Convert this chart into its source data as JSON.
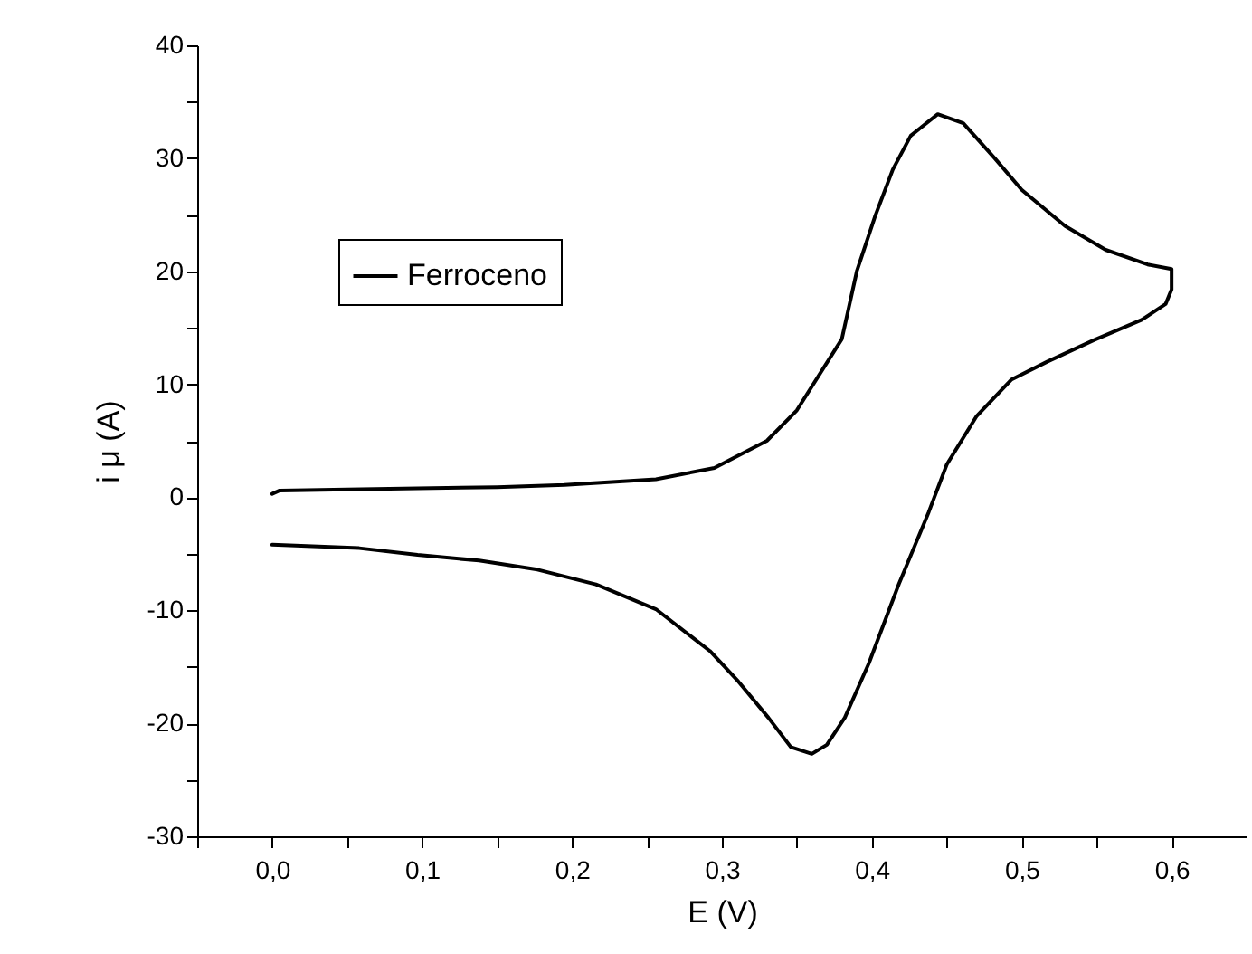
{
  "chart_data": {
    "type": "line",
    "xlabel": "E (V)",
    "ylabel": "i μ (A)",
    "x": [
      0.0,
      0.005,
      0.05,
      0.097,
      0.15,
      0.195,
      0.256,
      0.295,
      0.33,
      0.35,
      0.38,
      0.39,
      0.402,
      0.414,
      0.426,
      0.444,
      0.461,
      0.482,
      0.5,
      0.529,
      0.556,
      0.584,
      0.6,
      0.6,
      0.596,
      0.58,
      0.548,
      0.517,
      0.493,
      0.47,
      0.45,
      0.438,
      0.418,
      0.398,
      0.382,
      0.37,
      0.36,
      0.346,
      0.331,
      0.311,
      0.292,
      0.256,
      0.216,
      0.177,
      0.138,
      0.097,
      0.058,
      0.0
    ],
    "series": [
      {
        "name": "Ferroceno",
        "color": "#000000",
        "values": [
          0.3,
          0.6,
          0.7,
          0.8,
          0.9,
          1.1,
          1.6,
          2.6,
          5.0,
          7.7,
          14,
          20,
          24.8,
          29,
          32,
          33.9,
          33.1,
          30,
          27.2,
          24,
          21.9,
          20.6,
          20.2,
          18.4,
          17.1,
          15.7,
          13.9,
          12,
          10.4,
          7.2,
          2.9,
          -1.3,
          -7.7,
          -14.7,
          -19.5,
          -21.9,
          -22.7,
          -22.1,
          -19.5,
          -16.3,
          -13.6,
          -9.9,
          -7.7,
          -6.4,
          -5.6,
          -5.1,
          -4.5,
          -4.2
        ]
      }
    ],
    "xlim": [
      -0.05,
      0.65
    ],
    "xticks": [
      {
        "value": -0.05,
        "label": null
      },
      {
        "value": 0,
        "label": "0,0"
      },
      {
        "value": 0.05,
        "label": null
      },
      {
        "value": 0.1,
        "label": "0,1"
      },
      {
        "value": 0.15,
        "label": null
      },
      {
        "value": 0.2,
        "label": "0,2"
      },
      {
        "value": 0.25,
        "label": null
      },
      {
        "value": 0.3,
        "label": "0,3"
      },
      {
        "value": 0.35,
        "label": null
      },
      {
        "value": 0.4,
        "label": "0,4"
      },
      {
        "value": 0.45,
        "label": null
      },
      {
        "value": 0.5,
        "label": "0,5"
      },
      {
        "value": 0.55,
        "label": null
      },
      {
        "value": 0.6,
        "label": "0,6"
      }
    ],
    "ylim": [
      -30,
      40
    ],
    "yticks": [
      -30,
      {
        "value": -25,
        "label": null
      },
      -20,
      {
        "value": -15,
        "label": null
      },
      -10,
      {
        "value": -5,
        "label": null
      },
      0,
      {
        "value": 5,
        "label": null
      },
      10,
      {
        "value": 15,
        "label": null
      },
      20,
      {
        "value": 25,
        "label": null
      },
      30,
      {
        "value": 35,
        "label": null
      },
      40
    ],
    "grid": false,
    "legend": "top left",
    "marker": "none",
    "line_style": "solid"
  }
}
